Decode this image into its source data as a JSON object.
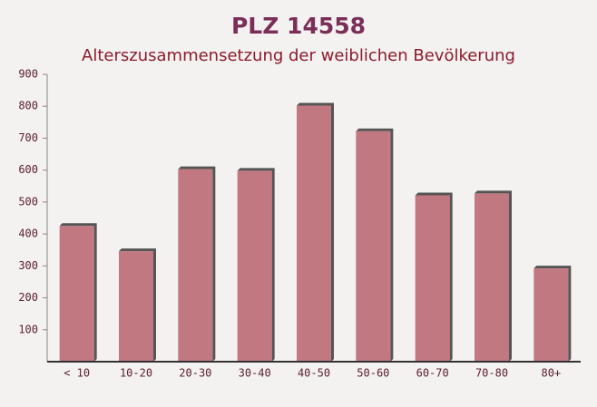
{
  "chart_data": {
    "type": "bar",
    "title": "PLZ 14558",
    "subtitle": "Alterszusammensetzung der weiblichen Bevölkerung",
    "categories": [
      "< 10",
      "10-20",
      "20-30",
      "30-40",
      "40-50",
      "50-60",
      "60-70",
      "70-80",
      "80+"
    ],
    "values": [
      425,
      346,
      603,
      598,
      802,
      722,
      521,
      527,
      292
    ],
    "color": "#b7636d",
    "ylim": [
      0,
      900
    ],
    "yticks": [
      100,
      200,
      300,
      400,
      500,
      600,
      700,
      800,
      900
    ]
  }
}
